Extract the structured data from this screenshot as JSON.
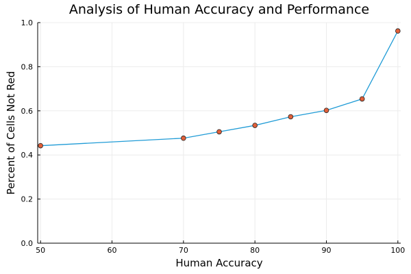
{
  "chart_data": {
    "type": "line",
    "title": "Analysis of Human Accuracy and Performance",
    "xlabel": "Human Accuracy",
    "ylabel": "Percent of Cells Not Red",
    "xlim": [
      49.6,
      100.4
    ],
    "ylim": [
      0,
      1.0
    ],
    "x_ticks": [
      50,
      60,
      70,
      80,
      90,
      100
    ],
    "y_ticks": [
      0.0,
      0.2,
      0.4,
      0.6,
      0.8,
      1.0
    ],
    "y_tick_labels": [
      "0.0",
      "0.2",
      "0.4",
      "0.6",
      "0.8",
      "1.0"
    ],
    "grid": true,
    "legend": "none",
    "series": [
      {
        "x": [
          50,
          70,
          75,
          80,
          85,
          90,
          95,
          100
        ],
        "y": [
          0.442,
          0.476,
          0.505,
          0.534,
          0.573,
          0.602,
          0.654,
          0.962
        ],
        "line_color": "#1f9bd6",
        "marker_color": "#e1603a"
      }
    ]
  }
}
